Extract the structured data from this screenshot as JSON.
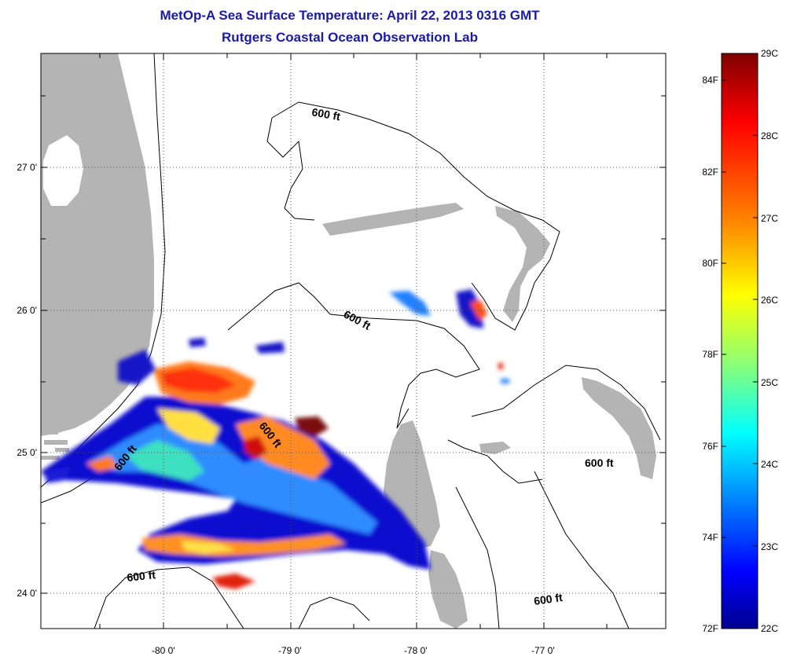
{
  "title": {
    "line1": "MetOp-A Sea Surface Temperature:  April 22, 2013 0316 GMT",
    "line2": "Rutgers Coastal Ocean Observation Lab"
  },
  "map": {
    "lon_range": [
      -80.95,
      -76.15
    ],
    "lat_range": [
      23.75,
      27.85
    ],
    "lon_ticks": [
      "-80 0'",
      "-79 0'",
      "-78 0'",
      "-77 0'"
    ],
    "lat_ticks": [
      "24 0'",
      "25 0'",
      "26 0'",
      "27 0'"
    ],
    "contour_label": "600 ft",
    "colors": {
      "land": "#b4b4b4",
      "frame": "#000000",
      "grid": "#555555"
    }
  },
  "colorbar": {
    "celsius_labels": [
      "29C",
      "28C",
      "27C",
      "26C",
      "25C",
      "24C",
      "23C",
      "22C"
    ],
    "fahrenheit_labels": [
      "84F",
      "82F",
      "80F",
      "78F",
      "76F",
      "74F",
      "72F"
    ],
    "gradient": [
      "#7f0000",
      "#ff0000",
      "#ff8000",
      "#ffff00",
      "#80ff80",
      "#00ffff",
      "#0080ff",
      "#0000ff",
      "#00008f"
    ]
  }
}
